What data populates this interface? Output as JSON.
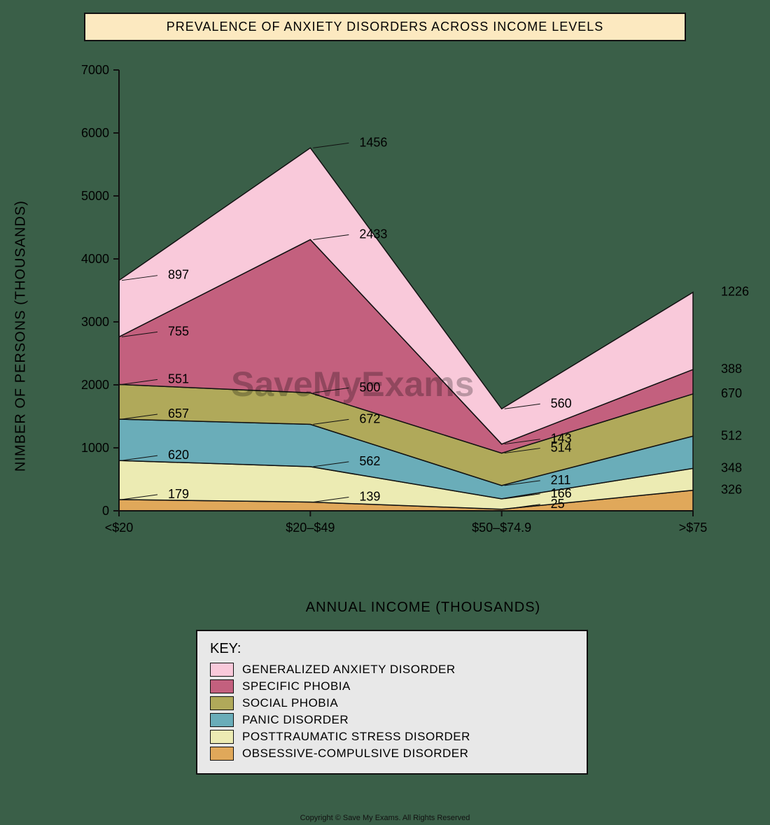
{
  "title": "PREVALENCE OF ANXIETY DISORDERS ACROSS INCOME LEVELS",
  "title_box": {
    "bg": "#fce9c0",
    "border": "#111111"
  },
  "page_bg": "#3a5f48",
  "chart": {
    "type": "stacked-area",
    "categories": [
      "<$20",
      "$20–$49",
      "$50–$74.9",
      ">$75"
    ],
    "series": [
      {
        "key": "ocd",
        "label": "OBSESSIVE-COMPULSIVE DISORDER",
        "color": "#e0a85a",
        "values": [
          179,
          139,
          25,
          326
        ]
      },
      {
        "key": "ptsd",
        "label": "POSTTRAUMATIC STRESS DISORDER",
        "color": "#ecebb3",
        "values": [
          620,
          562,
          166,
          348
        ]
      },
      {
        "key": "panic",
        "label": "PANIC DISORDER",
        "color": "#6aadb9",
        "values": [
          657,
          672,
          211,
          512
        ]
      },
      {
        "key": "social",
        "label": "SOCIAL PHOBIA",
        "color": "#b0a95a",
        "values": [
          551,
          500,
          514,
          670
        ]
      },
      {
        "key": "specific",
        "label": "SPECIFIC PHOBIA",
        "color": "#c3607e",
        "values": [
          755,
          2433,
          143,
          388
        ]
      },
      {
        "key": "gad",
        "label": "GENERALIZED ANXIETY DISORDER",
        "color": "#f9c9da",
        "values": [
          897,
          1456,
          560,
          1226
        ]
      }
    ],
    "stroke": "#111111",
    "ylabel": "NIMBER OF PERSONS (THOUSANDS)",
    "xlabel": "ANNUAL INCOME (THOUSANDS)",
    "ylim": [
      0,
      7000
    ],
    "ytick_step": 1000,
    "axis_color": "#111111",
    "label_fontsize": 20,
    "tick_fontsize": 18,
    "datalabel_fontsize": 18
  },
  "legend": {
    "title": "KEY:",
    "bg": "#e8e8e8",
    "border": "#111111"
  },
  "watermark": "SaveMyExams",
  "copyright": "Copyright © Save My Exams. All Rights Reserved"
}
